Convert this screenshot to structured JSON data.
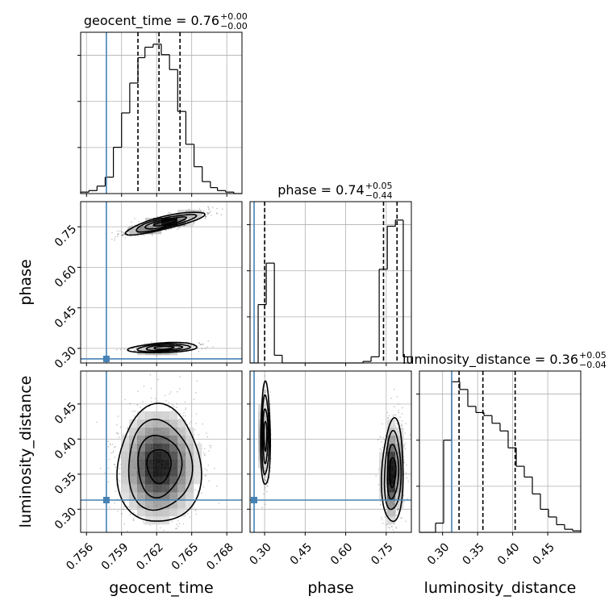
{
  "figure": {
    "type": "corner-plot",
    "truth_color": "#4682b4",
    "hist_color": "#000000",
    "grid_color": "#b0b0b0"
  },
  "chart_data": [
    {
      "id": "hist-geocent-time",
      "type": "bar",
      "title_param": "geocent_time",
      "title_value": "0.76",
      "title_plus": "+0.00",
      "title_minus": "−0.00",
      "xlim": [
        0.7555,
        0.7693
      ],
      "x_ticks": [
        0.756,
        0.759,
        0.762,
        0.765,
        0.768
      ],
      "bin_edges": [
        0.7555,
        0.7562,
        0.7569,
        0.7576,
        0.7583,
        0.759,
        0.7597,
        0.7604,
        0.761,
        0.7617,
        0.7624,
        0.7631,
        0.7638,
        0.7645,
        0.7652,
        0.7659,
        0.7666,
        0.7672,
        0.7679,
        0.7686,
        0.7693
      ],
      "values": [
        0.01,
        0.02,
        0.05,
        0.11,
        0.31,
        0.54,
        0.74,
        0.91,
        0.98,
        1.0,
        0.93,
        0.83,
        0.55,
        0.33,
        0.18,
        0.08,
        0.04,
        0.02,
        0.01,
        0.0
      ],
      "quantiles": [
        0.7604,
        0.7622,
        0.764
      ],
      "truth": 0.7577,
      "ylim": [
        0,
        1.08
      ]
    },
    {
      "id": "hist-phase",
      "type": "bar",
      "title_param": "phase",
      "title_value": "0.74",
      "title_plus": "+0.05",
      "title_minus": "−0.44",
      "xlim": [
        0.246,
        0.843
      ],
      "x_ticks": [
        0.3,
        0.45,
        0.6,
        0.75
      ],
      "bin_edges": [
        0.246,
        0.276,
        0.306,
        0.336,
        0.365,
        0.395,
        0.425,
        0.455,
        0.485,
        0.515,
        0.545,
        0.574,
        0.604,
        0.634,
        0.664,
        0.694,
        0.724,
        0.754,
        0.784,
        0.813,
        0.843
      ],
      "values": [
        0.0,
        0.38,
        0.65,
        0.05,
        0.0,
        0.0,
        0.0,
        0.0,
        0.0,
        0.0,
        0.0,
        0.0,
        0.0,
        0.0,
        0.01,
        0.04,
        0.61,
        0.89,
        0.93,
        0.04
      ],
      "quantiles": [
        0.3,
        0.74,
        0.79
      ],
      "truth": 0.261,
      "ylim": [
        0,
        1.05
      ]
    },
    {
      "id": "hist-luminosity-distance",
      "type": "bar",
      "title_param": "luminosity_distance",
      "title_value": "0.36",
      "title_plus": "+0.05",
      "title_minus": "−0.04",
      "xlim": [
        0.267,
        0.497
      ],
      "x_ticks": [
        0.3,
        0.35,
        0.4,
        0.45
      ],
      "bin_edges": [
        0.267,
        0.2785,
        0.29,
        0.3015,
        0.313,
        0.3245,
        0.336,
        0.3475,
        0.359,
        0.3705,
        0.382,
        0.3935,
        0.405,
        0.4165,
        0.428,
        0.4395,
        0.451,
        0.4625,
        0.474,
        0.4855,
        0.497
      ],
      "values": [
        0.0,
        0.0,
        0.06,
        0.6,
        0.98,
        0.93,
        0.82,
        0.78,
        0.76,
        0.71,
        0.66,
        0.55,
        0.43,
        0.36,
        0.25,
        0.15,
        0.1,
        0.05,
        0.02,
        0.01
      ],
      "quantiles": [
        0.3235,
        0.3575,
        0.4035
      ],
      "truth": 0.313,
      "ylim": [
        0,
        1.05
      ]
    },
    {
      "id": "joint-geocent-phase",
      "type": "scatter",
      "xlabel": "",
      "ylabel": "phase",
      "xlim": [
        0.7555,
        0.7693
      ],
      "ylim": [
        0.246,
        0.843
      ],
      "y_ticks": [
        0.3,
        0.45,
        0.6,
        0.75
      ],
      "truth": [
        0.7577,
        0.261
      ],
      "modes": [
        {
          "cx": 0.7627,
          "cy": 0.764,
          "sx": 0.0016,
          "sy": 0.02,
          "rho": 0.82,
          "weight": 0.78
        },
        {
          "cx": 0.7626,
          "cy": 0.302,
          "sx": 0.0014,
          "sy": 0.009,
          "rho": 0.3,
          "weight": 0.22
        }
      ]
    },
    {
      "id": "joint-geocent-distance",
      "type": "scatter",
      "xlabel": "geocent_time",
      "ylabel": "luminosity_distance",
      "xlim": [
        0.7555,
        0.7693
      ],
      "ylim": [
        0.267,
        0.497
      ],
      "y_ticks": [
        0.3,
        0.35,
        0.4,
        0.45
      ],
      "truth": [
        0.7577,
        0.313
      ],
      "modes": [
        {
          "cx": 0.7622,
          "cy": 0.362,
          "sx": 0.0017,
          "sy": 0.04,
          "rho": 0.0,
          "weight": 1.0
        }
      ]
    },
    {
      "id": "joint-phase-distance",
      "type": "scatter",
      "xlabel": "phase",
      "ylabel": "",
      "xlim": [
        0.246,
        0.843
      ],
      "ylim": [
        0.267,
        0.497
      ],
      "truth": [
        0.261,
        0.313
      ],
      "modes": [
        {
          "cx": 0.303,
          "cy": 0.405,
          "sx": 0.0085,
          "sy": 0.035,
          "rho": 0.0,
          "weight": 0.26
        },
        {
          "cx": 0.774,
          "cy": 0.353,
          "sx": 0.019,
          "sy": 0.035,
          "rho": 0.1,
          "weight": 0.74
        }
      ]
    },
    {
      "id": "axis-labels",
      "type": "table",
      "xlabel_1": "geocent_time",
      "xlabel_2": "phase",
      "xlabel_3": "luminosity_distance",
      "ylabel_2": "phase",
      "ylabel_3": "luminosity_distance"
    }
  ]
}
